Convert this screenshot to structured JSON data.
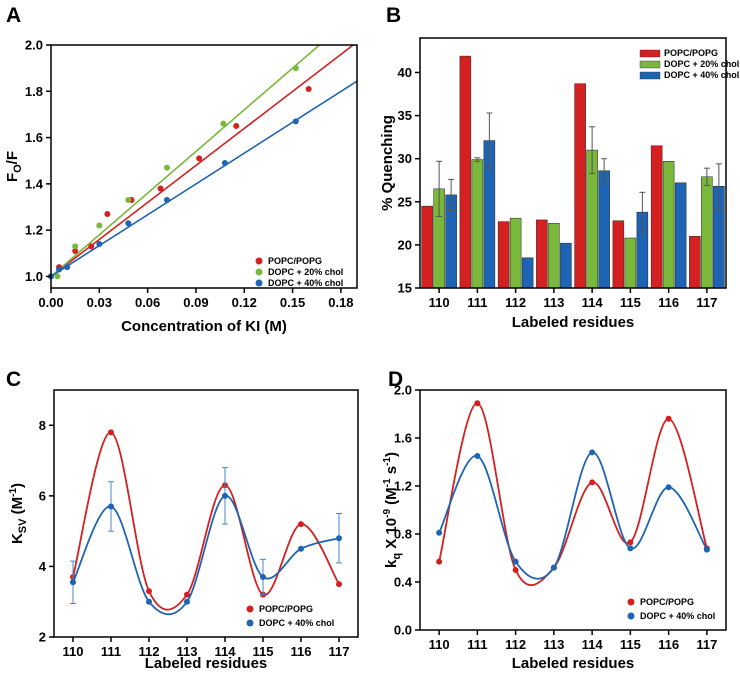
{
  "colors": {
    "red": "#d42020",
    "green": "#79b83a",
    "blue": "#1e64b4"
  },
  "chart_data": [
    {
      "panel": "A",
      "type": "scatter",
      "xlabel": "Concentration of KI (M)",
      "ylabel": "F",
      "ylabel_sub": "O",
      "ylabel_tail": "/F",
      "xlim": [
        0,
        0.19
      ],
      "ylim": [
        0.95,
        2.0
      ],
      "xticks": [
        "0.00",
        "0.03",
        "0.06",
        "0.09",
        "0.12",
        "0.15",
        "0.18"
      ],
      "yticks": [
        "1.0",
        "1.2",
        "1.4",
        "1.6",
        "1.8",
        "2.0"
      ],
      "legend_position": "bottom-right",
      "series": [
        {
          "name": "POPC/POPG",
          "color": "red",
          "x": [
            0,
            0.005,
            0.015,
            0.025,
            0.035,
            0.05,
            0.068,
            0.092,
            0.115,
            0.16
          ],
          "y": [
            1.0,
            1.04,
            1.11,
            1.13,
            1.27,
            1.33,
            1.38,
            1.51,
            1.65,
            1.81
          ],
          "fit": [
            1.0,
            5.33
          ]
        },
        {
          "name": "DOPC + 20% chol",
          "color": "green",
          "x": [
            0,
            0.004,
            0.015,
            0.03,
            0.048,
            0.072,
            0.107,
            0.152
          ],
          "y": [
            1.0,
            1.0,
            1.13,
            1.22,
            1.33,
            1.47,
            1.66,
            1.9
          ],
          "fit": [
            1.0,
            6.0
          ]
        },
        {
          "name": "DOPC + 40% chol",
          "color": "blue",
          "x": [
            0,
            0.005,
            0.01,
            0.03,
            0.048,
            0.072,
            0.108,
            0.152
          ],
          "y": [
            1.0,
            1.03,
            1.04,
            1.14,
            1.23,
            1.33,
            1.49,
            1.67
          ],
          "fit": [
            1.0,
            4.44
          ]
        }
      ]
    },
    {
      "panel": "B",
      "type": "bar",
      "xlabel": "Labeled residues",
      "ylabel": "% Quenching",
      "ylim": [
        15,
        44
      ],
      "yticks": [
        "15",
        "20",
        "25",
        "30",
        "35",
        "40"
      ],
      "categories": [
        "110",
        "111",
        "112",
        "113",
        "114",
        "115",
        "116",
        "117"
      ],
      "legend_position": "top-right",
      "series": [
        {
          "name": "POPC/POPG",
          "color": "red",
          "values": [
            24.5,
            41.9,
            22.7,
            22.9,
            38.7,
            22.8,
            31.5,
            21.0
          ],
          "errors": [
            0,
            0,
            0,
            0,
            0,
            0,
            0,
            0
          ]
        },
        {
          "name": "DOPC + 20% chol",
          "color": "green",
          "values": [
            26.5,
            29.9,
            23.1,
            22.5,
            31.0,
            20.8,
            29.7,
            27.9
          ],
          "errors": [
            3.2,
            0.2,
            0,
            0,
            2.7,
            0,
            0,
            1.0
          ]
        },
        {
          "name": "DOPC + 40% chol",
          "color": "blue",
          "values": [
            25.8,
            32.1,
            18.5,
            20.2,
            28.6,
            23.8,
            27.2,
            26.8
          ],
          "errors": [
            1.8,
            3.2,
            0,
            0,
            1.4,
            2.3,
            0,
            2.6
          ]
        }
      ]
    },
    {
      "panel": "C",
      "type": "line",
      "xlabel": "Labeled residues",
      "ylabel": "K",
      "ylabel_sub": "SV",
      "ylabel_tail": " (M",
      "ylabel_sup": "-1",
      "ylabel_end": ")",
      "categories": [
        "110",
        "111",
        "112",
        "113",
        "114",
        "115",
        "116",
        "117"
      ],
      "ylim": [
        2,
        9
      ],
      "yticks": [
        "2",
        "4",
        "6",
        "8"
      ],
      "legend_position": "bottom-right",
      "series": [
        {
          "name": "POPC/POPG",
          "color": "red",
          "values": [
            3.7,
            7.8,
            3.3,
            3.2,
            6.3,
            3.2,
            5.2,
            3.5
          ],
          "errors": [
            0,
            0,
            0,
            0,
            0,
            0,
            0,
            0
          ]
        },
        {
          "name": "DOPC + 40% chol",
          "color": "blue",
          "values": [
            3.55,
            5.7,
            3.0,
            3.0,
            6.0,
            3.7,
            4.5,
            4.8
          ],
          "errors": [
            0.6,
            0.7,
            0,
            0,
            0.8,
            0.5,
            0,
            0.7
          ]
        }
      ]
    },
    {
      "panel": "D",
      "type": "line",
      "xlabel": "Labeled residues",
      "ylabel": "k",
      "ylabel_sub": "q",
      "ylabel_tail": " X 10",
      "ylabel_sup": "-9",
      "ylabel_end": " (M",
      "ylabel_sup2": "-1",
      "ylabel_end2": " s",
      "ylabel_sup3": "-1",
      "ylabel_end3": ")",
      "categories": [
        "110",
        "111",
        "112",
        "113",
        "114",
        "115",
        "116",
        "117"
      ],
      "ylim": [
        0,
        2.0
      ],
      "yticks": [
        "0.0",
        "0.4",
        "0.8",
        "1.2",
        "1.6",
        "2.0"
      ],
      "legend_position": "bottom-right",
      "series": [
        {
          "name": "POPC/POPG",
          "color": "red",
          "values": [
            0.57,
            1.89,
            0.5,
            0.52,
            1.23,
            0.73,
            1.76,
            0.68
          ]
        },
        {
          "name": "DOPC + 40% chol",
          "color": "blue",
          "values": [
            0.81,
            1.45,
            0.57,
            0.52,
            1.48,
            0.68,
            1.19,
            0.67
          ]
        }
      ]
    }
  ]
}
